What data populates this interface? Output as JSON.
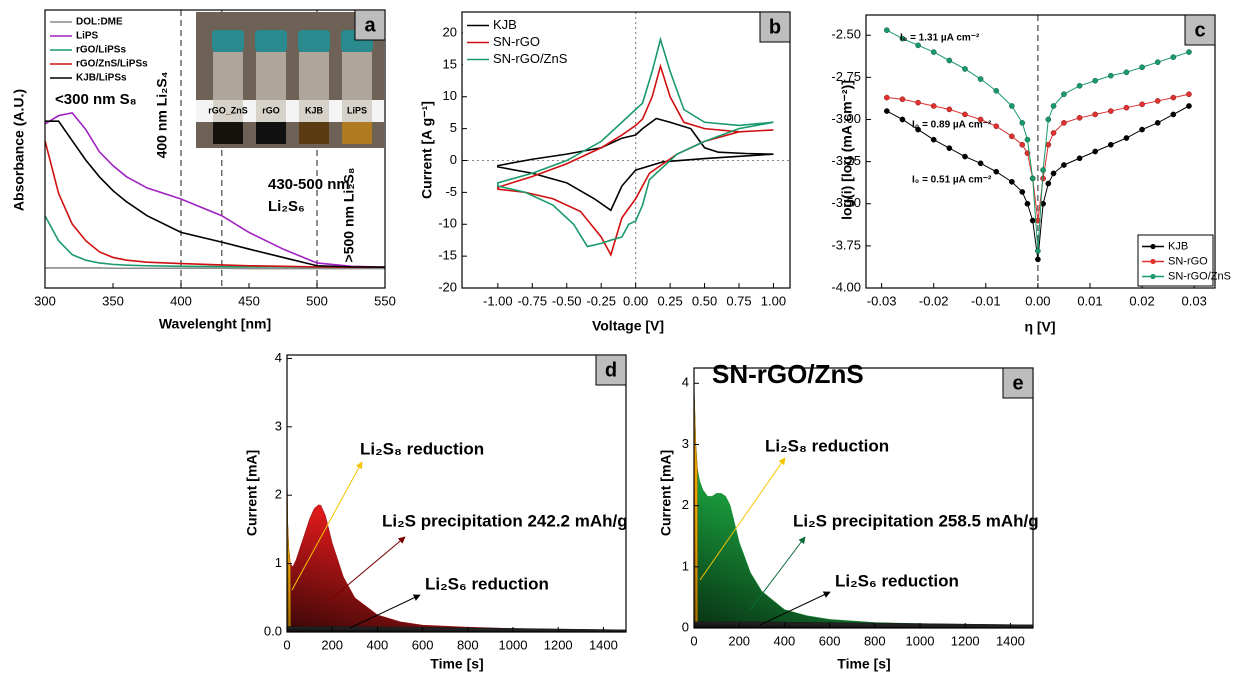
{
  "chart_data": [
    {
      "type": "line",
      "label": "a",
      "xlabel": "Wavelenght [nm]",
      "ylabel": "Absorbance (A.U.)",
      "x": [
        300,
        310,
        320,
        330,
        340,
        350,
        360,
        375,
        400,
        430,
        450,
        475,
        500,
        525,
        550
      ],
      "series": [
        {
          "name": "DOL:DME",
          "color": "#8c8c8c",
          "values": [
            0.072,
            0.072,
            0.072,
            0.072,
            0.072,
            0.071,
            0.071,
            0.071,
            0.071,
            0.071,
            0.07,
            0.07,
            0.07,
            0.07,
            0.07
          ]
        },
        {
          "name": "LiPS",
          "color": "#a020c0",
          "values": [
            0.59,
            0.62,
            0.63,
            0.57,
            0.49,
            0.44,
            0.4,
            0.36,
            0.32,
            0.26,
            0.2,
            0.14,
            0.09,
            0.078,
            0.075
          ]
        },
        {
          "name": "rGO/LiPSs",
          "color": "#1a9a6a",
          "values": [
            0.26,
            0.17,
            0.12,
            0.1,
            0.09,
            0.085,
            0.082,
            0.08,
            0.078,
            0.077,
            0.076,
            0.076,
            0.075,
            0.075,
            0.075
          ]
        },
        {
          "name": "rGO/ZnS/LiPSs",
          "color": "#d01010",
          "values": [
            0.53,
            0.34,
            0.23,
            0.17,
            0.13,
            0.11,
            0.1,
            0.093,
            0.088,
            0.083,
            0.08,
            0.078,
            0.076,
            0.075,
            0.075
          ]
        },
        {
          "name": "KJB/LiPSs",
          "color": "#000000",
          "values": [
            0.6,
            0.6,
            0.53,
            0.46,
            0.4,
            0.35,
            0.31,
            0.26,
            0.2,
            0.165,
            0.14,
            0.11,
            0.08,
            0.076,
            0.075
          ]
        }
      ],
      "xlim": [
        300,
        550
      ],
      "xticks": [
        300,
        350,
        400,
        450,
        500,
        550
      ],
      "ylim": [
        0,
        1
      ],
      "vlines": [
        400,
        430,
        500
      ],
      "legend": "upper left",
      "annotations": [
        {
          "text": "<300 nm S₈",
          "color": "#000000"
        },
        {
          "text": "400 nm Li₂S₄",
          "color": "#000000"
        },
        {
          "text": "430-500 nm",
          "color": "#000000"
        },
        {
          "text": "Li₂S₆",
          "color": "#000000"
        },
        {
          "text": ">500 nm Li₂S₈",
          "color": "#000000"
        }
      ],
      "inset": {
        "labels": [
          {
            "text": "rGO_ZnS",
            "color": "#1a9a6a"
          },
          {
            "text": "rGO",
            "color": "#d01010"
          },
          {
            "text": "KJB",
            "color": "#000000"
          },
          {
            "text": "LiPS",
            "color": "#c030e0"
          }
        ]
      }
    },
    {
      "type": "line",
      "label": "b",
      "xlabel": "Voltage [V]",
      "ylabel": "Current [A g⁻¹]",
      "series": [
        {
          "name": "KJB",
          "color": "#000000",
          "x": [
            1.0,
            0.5,
            0.2,
            0.0,
            -0.1,
            -0.18,
            -0.3,
            -0.5,
            -0.75,
            -1.0,
            -1.0,
            -0.75,
            -0.5,
            -0.25,
            -0.1,
            0.0,
            0.05,
            0.15,
            0.25,
            0.4,
            0.5,
            0.6,
            0.8,
            1.0
          ],
          "values": [
            1.0,
            0.3,
            -0.2,
            -1.5,
            -4,
            -7.8,
            -6,
            -3.5,
            -2,
            -1,
            -0.8,
            0.2,
            1,
            2,
            3.5,
            4,
            5,
            6.6,
            6,
            5,
            2,
            1.3,
            1.1,
            1.0
          ]
        },
        {
          "name": "SN-rGO",
          "color": "#d01010",
          "x": [
            1.0,
            0.75,
            0.5,
            0.3,
            0.1,
            0.0,
            -0.1,
            -0.18,
            -0.25,
            -0.4,
            -0.6,
            -0.8,
            -1.0,
            -1.0,
            -0.75,
            -0.5,
            -0.25,
            -0.1,
            0.0,
            0.05,
            0.12,
            0.18,
            0.25,
            0.35,
            0.5,
            0.75,
            1.0
          ],
          "values": [
            4.8,
            4.5,
            3,
            1,
            -2,
            -6,
            -9,
            -14.8,
            -12,
            -8,
            -6,
            -5,
            -4.5,
            -4.2,
            -2.5,
            -0.5,
            2,
            4,
            5.5,
            6.5,
            10,
            14.8,
            10,
            6,
            5,
            4.5,
            4.8
          ]
        },
        {
          "name": "SN-rGO/ZnS",
          "color": "#1a9a6a",
          "x": [
            1.0,
            0.75,
            0.5,
            0.3,
            0.1,
            0.05,
            0.0,
            -0.05,
            -0.1,
            -0.18,
            -0.25,
            -0.35,
            -0.45,
            -0.6,
            -0.8,
            -1.0,
            -1.0,
            -0.75,
            -0.5,
            -0.25,
            -0.1,
            0.0,
            0.05,
            0.12,
            0.18,
            0.25,
            0.35,
            0.5,
            0.75,
            1.0
          ],
          "values": [
            6,
            5,
            3,
            1,
            -3,
            -7,
            -9.5,
            -10,
            -12,
            -12.5,
            -13,
            -13.5,
            -10,
            -7,
            -5,
            -4,
            -3.5,
            -2,
            0,
            3,
            6,
            8,
            9,
            14,
            19,
            14,
            8,
            6,
            5.5,
            6
          ]
        }
      ],
      "xlim": [
        -1.26,
        1.12
      ],
      "ylim": [
        -20,
        23.3
      ],
      "xticks": [
        {
          "value": -1,
          "label": "-1.00"
        },
        -0.75,
        {
          "value": -0.5,
          "label": "-0.50"
        },
        -0.25,
        {
          "value": 0,
          "label": "0.00"
        },
        0.25,
        {
          "value": 0.5,
          "label": "0.50"
        },
        0.75,
        {
          "value": 1,
          "label": "1.00"
        }
      ],
      "yticks": [
        -20,
        -15,
        -10,
        -5,
        0,
        5,
        10,
        15,
        20
      ],
      "vlines": [
        0
      ],
      "hlines": [
        0
      ],
      "legend": "upper left"
    },
    {
      "type": "line",
      "label": "c",
      "xlabel": "η [V]",
      "ylabel": "log(i) [log (mA cm⁻²)]",
      "markers": true,
      "x": [
        -0.029,
        -0.026,
        -0.023,
        -0.02,
        -0.017,
        -0.014,
        -0.011,
        -0.008,
        -0.005,
        -0.003,
        -0.002,
        -0.001,
        0,
        0.001,
        0.002,
        0.003,
        0.005,
        0.008,
        0.011,
        0.014,
        0.017,
        0.02,
        0.023,
        0.026,
        0.029
      ],
      "series": [
        {
          "name": "KJB",
          "color": "#000000",
          "values": [
            -2.95,
            -3.0,
            -3.06,
            -3.12,
            -3.17,
            -3.22,
            -3.26,
            -3.31,
            -3.37,
            -3.43,
            -3.5,
            -3.6,
            -3.83,
            -3.5,
            -3.38,
            -3.32,
            -3.27,
            -3.23,
            -3.19,
            -3.15,
            -3.11,
            -3.06,
            -3.02,
            -2.97,
            -2.92
          ]
        },
        {
          "name": "SN-rGO",
          "color": "#e03030",
          "values": [
            -2.87,
            -2.88,
            -2.9,
            -2.92,
            -2.94,
            -2.97,
            -3.0,
            -3.04,
            -3.1,
            -3.15,
            -3.2,
            -3.35,
            -3.6,
            -3.35,
            -3.15,
            -3.08,
            -3.02,
            -2.99,
            -2.97,
            -2.95,
            -2.93,
            -2.91,
            -2.89,
            -2.87,
            -2.85
          ]
        },
        {
          "name": "SN-rGO/ZnS",
          "color": "#1a9a6a",
          "values": [
            -2.47,
            -2.52,
            -2.56,
            -2.6,
            -2.65,
            -2.7,
            -2.76,
            -2.83,
            -2.92,
            -3.02,
            -3.12,
            -3.35,
            -3.78,
            -3.3,
            -3.0,
            -2.92,
            -2.85,
            -2.8,
            -2.77,
            -2.74,
            -2.72,
            -2.69,
            -2.66,
            -2.63,
            -2.6
          ]
        }
      ],
      "xlim": [
        -0.033,
        0.034
      ],
      "ylim": [
        -4.0,
        -2.38
      ],
      "xticks": [
        -0.03,
        -0.02,
        -0.01,
        {
          "value": 0,
          "label": "0.00"
        },
        0.01,
        0.02,
        0.03
      ],
      "yticks": [
        {
          "value": -4,
          "label": "-4.00"
        },
        -3.75,
        {
          "value": -3.5,
          "label": "-3.50"
        },
        -3.25,
        {
          "value": -3,
          "label": "-3.00"
        },
        -2.75,
        {
          "value": -2.5,
          "label": "-2.50"
        }
      ],
      "vlines": [
        0
      ],
      "legend": "lower right",
      "annotations": [
        {
          "text": "I₀ = 1.31 µA cm⁻²",
          "color": "#1a9a6a"
        },
        {
          "text": "I₀ = 0.89 µA cm⁻²",
          "color": "#e03030"
        },
        {
          "text": "I₀ = 0.51 µA cm⁻²",
          "color": "#000000"
        }
      ]
    },
    {
      "type": "area",
      "label": "d",
      "xlabel": "Time [s]",
      "ylabel": "Current [mA]",
      "series": [
        {
          "name": "Li₂S precipitation 242.2 mAh/g",
          "color": "#e31a1c",
          "x": [
            0,
            3,
            8,
            15,
            25,
            40,
            60,
            80,
            100,
            120,
            140,
            150,
            170,
            200,
            250,
            300,
            400,
            500,
            600,
            800,
            1000,
            1200,
            1500
          ],
          "values": [
            2.4,
            1.6,
            1.2,
            1.0,
            0.95,
            1.05,
            1.25,
            1.45,
            1.65,
            1.8,
            1.86,
            1.85,
            1.7,
            1.3,
            0.8,
            0.5,
            0.25,
            0.15,
            0.1,
            0.07,
            0.05,
            0.04,
            0.03
          ]
        },
        {
          "name": "Li₂S₈ reduction",
          "color": "#f0a000",
          "x": [
            0,
            3,
            8,
            15
          ],
          "values": [
            2.4,
            1.6,
            1.2,
            1.0
          ]
        },
        {
          "name": "Li₂S₆ reduction",
          "color": "#222222",
          "x": [
            0,
            300,
            1500
          ],
          "values": [
            0.08,
            0.08,
            0.03
          ]
        }
      ],
      "xlim": [
        0,
        1500
      ],
      "ylim": [
        0,
        4.05
      ],
      "xticks": [
        0,
        200,
        400,
        600,
        800,
        1000,
        1200,
        1400
      ],
      "yticks": [
        {
          "value": 0,
          "label": "0.0"
        },
        1,
        2,
        3,
        4
      ],
      "label_colors": [
        "#e31a1c",
        "#f5c400",
        "#000000"
      ]
    },
    {
      "type": "area",
      "label": "e",
      "xlabel": "Time [s]",
      "ylabel": "Current [mA]",
      "title": "SN-rGO/ZnS",
      "title_color": "#1a9a6a",
      "series": [
        {
          "name": "Li₂S precipitation 258.5 mAh/g",
          "color": "#1fc04a",
          "x": [
            0,
            3,
            8,
            15,
            25,
            40,
            60,
            80,
            100,
            120,
            140,
            160,
            180,
            200,
            250,
            300,
            400,
            500,
            600,
            800,
            1000,
            1200,
            1500
          ],
          "values": [
            3.95,
            3.6,
            3.0,
            2.6,
            2.4,
            2.25,
            2.15,
            2.15,
            2.2,
            2.2,
            2.15,
            2.0,
            1.7,
            1.4,
            0.9,
            0.6,
            0.3,
            0.2,
            0.14,
            0.09,
            0.07,
            0.06,
            0.05
          ]
        },
        {
          "name": "Li₂S₈ reduction",
          "color": "#f0a000",
          "x": [
            0,
            3,
            8,
            15
          ],
          "values": [
            3.95,
            3.6,
            3.0,
            2.6
          ]
        },
        {
          "name": "Li₂S₆ reduction",
          "color": "#222222",
          "x": [
            0,
            300,
            1500
          ],
          "values": [
            0.1,
            0.1,
            0.05
          ]
        }
      ],
      "xlim": [
        0,
        1500
      ],
      "ylim": [
        0,
        4.25
      ],
      "xticks": [
        0,
        200,
        400,
        600,
        800,
        1000,
        1200,
        1400
      ],
      "yticks": [
        0,
        1,
        2,
        3,
        4
      ],
      "label_colors": [
        "#1fb84a",
        "#f5c400",
        "#000000"
      ]
    }
  ]
}
